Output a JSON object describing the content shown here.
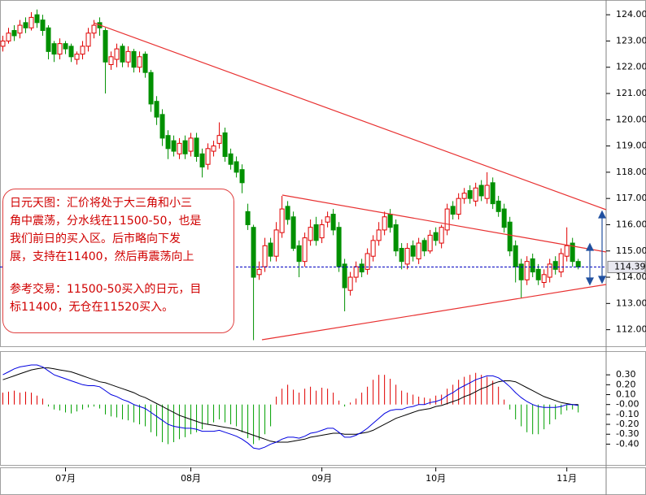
{
  "chart_data": [
    {
      "type": "candlestick",
      "open": [
        122.8,
        123.0,
        123.4,
        123.3,
        123.7,
        123.5,
        124.0,
        123.8,
        123.5,
        122.9,
        122.5,
        122.9,
        122.8,
        122.3,
        122.5,
        122.8,
        123.3,
        123.7,
        123.4,
        122.1,
        122.3,
        122.8,
        122.2,
        122.6,
        122.0,
        122.5,
        121.8,
        120.7,
        120.2,
        119.4,
        119.2,
        118.7,
        119.2,
        118.8,
        119.3,
        118.7,
        118.3,
        118.8,
        119.1,
        119.5,
        118.7,
        118.4,
        118.1,
        116.5,
        115.9,
        114.1,
        114.4,
        115.3,
        114.8,
        115.7,
        116.7,
        116.3,
        115.2,
        114.6,
        115.4,
        116.0,
        115.5,
        116.1,
        116.4,
        115.9,
        114.5,
        113.5,
        114.0,
        114.5,
        114.3,
        114.8,
        115.4,
        115.8,
        116.4,
        116.0,
        115.1,
        114.5,
        115.2,
        114.7,
        115.4,
        115.0,
        115.7,
        115.3,
        115.8,
        116.7,
        116.4,
        117.0,
        117.3,
        116.9,
        117.5,
        117.0,
        117.6,
        116.9,
        116.6,
        116.1,
        115.2,
        114.5,
        113.9,
        114.7,
        114.3,
        113.8,
        114.0,
        114.6,
        114.2,
        114.8,
        115.3,
        114.6
      ],
      "high": [
        123.2,
        123.5,
        123.6,
        123.8,
        123.9,
        124.1,
        124.2,
        124.0,
        123.6,
        123.0,
        123.1,
        123.0,
        122.9,
        122.6,
        123.0,
        123.5,
        123.8,
        123.9,
        123.5,
        122.6,
        122.9,
        122.9,
        122.8,
        122.7,
        122.6,
        122.6,
        121.9,
        120.9,
        120.4,
        119.6,
        119.4,
        119.3,
        119.4,
        119.5,
        119.5,
        118.9,
        119.1,
        119.2,
        119.9,
        119.7,
        118.9,
        118.6,
        118.3,
        116.8,
        116.0,
        114.6,
        115.5,
        115.5,
        116.1,
        117.1,
        116.9,
        116.5,
        115.4,
        115.7,
        116.2,
        116.3,
        116.2,
        116.5,
        116.6,
        116.1,
        114.7,
        114.2,
        114.6,
        114.7,
        115.1,
        115.6,
        116.1,
        116.5,
        116.6,
        116.2,
        115.3,
        115.3,
        115.4,
        115.5,
        115.5,
        115.8,
        115.9,
        116.0,
        116.8,
        116.9,
        117.2,
        117.4,
        117.5,
        117.6,
        117.7,
        118.0,
        117.8,
        117.1,
        116.8,
        116.3,
        115.4,
        114.7,
        114.8,
        114.9,
        114.5,
        114.3,
        114.7,
        114.8,
        115.1,
        115.9,
        115.5,
        114.7
      ],
      "low": [
        122.6,
        122.9,
        123.0,
        123.1,
        123.3,
        123.4,
        123.5,
        123.2,
        122.3,
        122.2,
        122.3,
        122.5,
        122.2,
        122.1,
        122.3,
        122.6,
        123.1,
        123.2,
        121.0,
        121.9,
        122.0,
        122.0,
        122.0,
        121.8,
        121.8,
        121.6,
        120.3,
        119.8,
        119.0,
        118.5,
        118.6,
        118.5,
        118.5,
        118.6,
        118.4,
        117.8,
        118.1,
        118.6,
        118.9,
        118.4,
        118.1,
        117.8,
        117.2,
        115.8,
        111.6,
        113.9,
        114.2,
        114.6,
        114.6,
        115.5,
        116.0,
        115.0,
        114.0,
        114.4,
        115.2,
        115.2,
        115.3,
        115.9,
        115.6,
        114.2,
        112.7,
        113.3,
        113.8,
        114.0,
        114.1,
        114.6,
        115.2,
        115.6,
        115.7,
        114.8,
        114.3,
        114.3,
        114.6,
        114.5,
        114.8,
        114.9,
        115.2,
        115.1,
        115.6,
        116.2,
        116.2,
        116.8,
        116.8,
        116.7,
        116.9,
        116.8,
        116.6,
        116.3,
        115.7,
        114.8,
        113.8,
        113.2,
        113.7,
        114.0,
        113.7,
        113.6,
        113.8,
        114.1,
        114.0,
        114.6,
        114.4,
        114.3
      ],
      "close": [
        123.0,
        123.3,
        123.2,
        123.6,
        123.5,
        123.9,
        123.7,
        123.4,
        122.6,
        122.5,
        122.9,
        122.7,
        122.4,
        122.5,
        122.8,
        123.3,
        123.6,
        123.5,
        122.2,
        122.4,
        122.7,
        122.2,
        122.6,
        122.0,
        122.4,
        121.8,
        120.6,
        120.1,
        119.3,
        118.9,
        118.8,
        119.1,
        118.7,
        119.3,
        118.6,
        118.2,
        118.9,
        119.0,
        119.4,
        118.6,
        118.3,
        118.0,
        117.6,
        116.0,
        114.0,
        114.3,
        115.2,
        114.8,
        115.8,
        116.6,
        116.2,
        115.1,
        114.6,
        115.5,
        115.9,
        115.4,
        116.0,
        116.3,
        115.8,
        114.4,
        113.6,
        114.0,
        114.4,
        114.2,
        114.9,
        115.4,
        115.8,
        116.3,
        115.9,
        115.0,
        114.6,
        115.1,
        114.8,
        115.3,
        115.0,
        115.6,
        115.4,
        115.9,
        116.6,
        116.4,
        117.0,
        117.2,
        117.0,
        117.4,
        117.1,
        117.5,
        116.8,
        116.5,
        115.9,
        115.0,
        114.4,
        113.9,
        114.6,
        114.2,
        113.9,
        114.1,
        114.5,
        114.3,
        114.9,
        115.2,
        114.6,
        114.39
      ],
      "up_color": "#e00000",
      "down_color": "#009000",
      "last_price": 114.39,
      "last_price_color": "#0000c0",
      "xlim": [
        -0.5,
        105.9
      ],
      "xticks": [
        {
          "value": 11,
          "label": "07月"
        },
        {
          "value": 33,
          "label": "08月"
        },
        {
          "value": 56,
          "label": "09月"
        },
        {
          "value": 76,
          "label": "10月"
        },
        {
          "value": 99,
          "label": "11月"
        }
      ],
      "ylim": [
        111.4,
        124.5
      ],
      "yticks": [
        {
          "value": 112,
          "label": "112.00"
        },
        {
          "value": 113,
          "label": "113.00"
        },
        {
          "value": 114,
          "label": "114.00"
        },
        {
          "value": 115,
          "label": "115.00"
        },
        {
          "value": 116,
          "label": "116.00"
        },
        {
          "value": 117,
          "label": "117.00"
        },
        {
          "value": 118,
          "label": "118.00"
        },
        {
          "value": 119,
          "label": "119.00"
        },
        {
          "value": 120,
          "label": "120.00"
        },
        {
          "value": 121,
          "label": "121.00"
        },
        {
          "value": 122,
          "label": "122.00"
        },
        {
          "value": 123,
          "label": "123.00"
        },
        {
          "value": 124,
          "label": "124.00"
        }
      ]
    },
    {
      "type": "macd",
      "histogram": [
        0.12,
        0.13,
        0.14,
        0.12,
        0.13,
        0.12,
        0.09,
        0.06,
        -0.02,
        -0.05,
        -0.06,
        -0.08,
        -0.09,
        -0.07,
        -0.05,
        -0.03,
        -0.02,
        -0.04,
        -0.1,
        -0.12,
        -0.13,
        -0.15,
        -0.16,
        -0.18,
        -0.2,
        -0.22,
        -0.28,
        -0.32,
        -0.38,
        -0.4,
        -0.38,
        -0.35,
        -0.33,
        -0.3,
        -0.28,
        -0.25,
        -0.2,
        -0.18,
        -0.15,
        -0.18,
        -0.2,
        -0.22,
        -0.28,
        -0.34,
        -0.4,
        -0.36,
        -0.3,
        -0.22,
        0.08,
        0.16,
        0.2,
        0.15,
        0.12,
        0.16,
        0.18,
        0.14,
        0.17,
        0.16,
        0.12,
        0.04,
        -0.02,
        0.02,
        0.06,
        0.12,
        0.18,
        0.25,
        0.3,
        0.3,
        0.26,
        0.2,
        0.14,
        0.12,
        0.1,
        0.08,
        0.07,
        0.06,
        0.09,
        0.1,
        0.16,
        0.2,
        0.25,
        0.28,
        0.3,
        0.32,
        0.3,
        0.28,
        0.24,
        0.18,
        0.05,
        -0.05,
        -0.15,
        -0.22,
        -0.28,
        -0.3,
        -0.3,
        -0.25,
        -0.2,
        -0.15,
        -0.1,
        -0.06,
        -0.05,
        -0.08
      ],
      "dif": [
        0.3,
        0.33,
        0.36,
        0.38,
        0.39,
        0.4,
        0.4,
        0.38,
        0.34,
        0.3,
        0.28,
        0.26,
        0.24,
        0.22,
        0.2,
        0.19,
        0.19,
        0.18,
        0.14,
        0.1,
        0.08,
        0.05,
        0.03,
        0.0,
        -0.02,
        -0.04,
        -0.08,
        -0.12,
        -0.16,
        -0.2,
        -0.22,
        -0.23,
        -0.24,
        -0.24,
        -0.25,
        -0.27,
        -0.27,
        -0.27,
        -0.26,
        -0.28,
        -0.3,
        -0.32,
        -0.35,
        -0.39,
        -0.44,
        -0.45,
        -0.43,
        -0.4,
        -0.38,
        -0.35,
        -0.33,
        -0.33,
        -0.34,
        -0.32,
        -0.29,
        -0.28,
        -0.26,
        -0.24,
        -0.24,
        -0.28,
        -0.33,
        -0.33,
        -0.31,
        -0.28,
        -0.24,
        -0.19,
        -0.14,
        -0.09,
        -0.06,
        -0.05,
        -0.05,
        -0.03,
        -0.02,
        0.0,
        0.0,
        0.02,
        0.03,
        0.05,
        0.09,
        0.12,
        0.16,
        0.19,
        0.22,
        0.25,
        0.27,
        0.29,
        0.29,
        0.27,
        0.23,
        0.18,
        0.12,
        0.07,
        0.03,
        0.0,
        -0.02,
        -0.03,
        -0.03,
        -0.03,
        -0.02,
        0.0,
        0.0,
        -0.01
      ],
      "dea": [
        0.25,
        0.27,
        0.29,
        0.31,
        0.33,
        0.35,
        0.36,
        0.37,
        0.37,
        0.36,
        0.35,
        0.34,
        0.33,
        0.31,
        0.29,
        0.27,
        0.25,
        0.23,
        0.22,
        0.2,
        0.18,
        0.16,
        0.14,
        0.12,
        0.09,
        0.07,
        0.04,
        0.01,
        -0.02,
        -0.05,
        -0.08,
        -0.11,
        -0.13,
        -0.15,
        -0.17,
        -0.19,
        -0.2,
        -0.21,
        -0.22,
        -0.23,
        -0.24,
        -0.25,
        -0.27,
        -0.29,
        -0.31,
        -0.33,
        -0.35,
        -0.37,
        -0.38,
        -0.38,
        -0.38,
        -0.37,
        -0.36,
        -0.35,
        -0.33,
        -0.32,
        -0.31,
        -0.3,
        -0.29,
        -0.29,
        -0.3,
        -0.3,
        -0.3,
        -0.29,
        -0.28,
        -0.26,
        -0.23,
        -0.2,
        -0.17,
        -0.14,
        -0.12,
        -0.1,
        -0.08,
        -0.06,
        -0.05,
        -0.04,
        -0.02,
        -0.01,
        0.01,
        0.03,
        0.05,
        0.08,
        0.1,
        0.13,
        0.16,
        0.18,
        0.21,
        0.23,
        0.24,
        0.24,
        0.23,
        0.2,
        0.17,
        0.14,
        0.11,
        0.08,
        0.06,
        0.04,
        0.02,
        0.01,
        0.0,
        0.0
      ],
      "positive_color": "#e00000",
      "negative_color": "#00a000",
      "dif_color": "#0000e0",
      "dea_color": "#000000",
      "ylim": [
        -0.61,
        0.49
      ],
      "yticks": [
        {
          "value": 0.3,
          "label": "0.30"
        },
        {
          "value": 0.2,
          "label": "0.20"
        },
        {
          "value": 0.1,
          "label": "0.10"
        },
        {
          "value": 0,
          "label": "-0.00"
        },
        {
          "value": -0.1,
          "label": "-0.10"
        },
        {
          "value": -0.2,
          "label": "-0.20"
        },
        {
          "value": -0.3,
          "label": "-0.30"
        },
        {
          "value": -0.4,
          "label": "-0.40"
        }
      ]
    }
  ],
  "annotation": {
    "analysis": [
      "日元天图：汇价将处于大三角和小三",
      "角中震荡，分水线在11500-50，也是",
      "我们前日的买入区。后市略向下发",
      "展，支持在11400，然后再震荡向上"
    ],
    "trade": [
      "参考交易：11500-50买入的日元，目",
      "标11400，无仓在11520买入。"
    ]
  }
}
